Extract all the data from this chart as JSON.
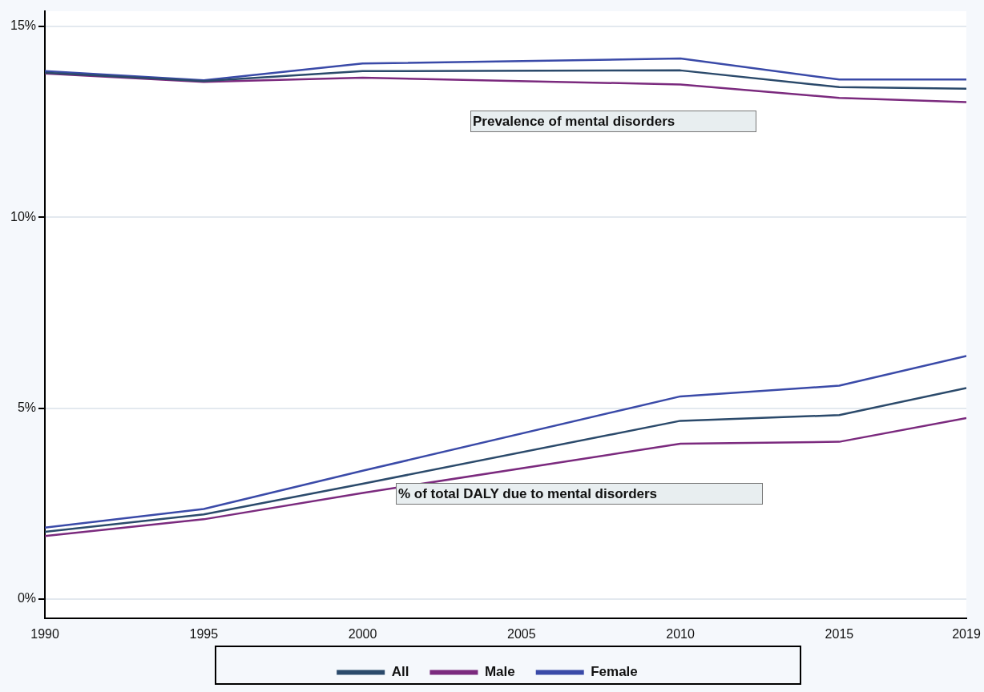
{
  "chart_data": {
    "type": "line",
    "x": [
      1990,
      1995,
      2000,
      2010,
      2015,
      2019
    ],
    "xlim": [
      1990,
      2019
    ],
    "xticks": [
      1990,
      1995,
      2000,
      2005,
      2010,
      2015,
      2019
    ],
    "ylim": [
      -0.5,
      15.4
    ],
    "yticks": [
      {
        "value": 0,
        "label": "0%"
      },
      {
        "value": 5,
        "label": "5%"
      },
      {
        "value": 10,
        "label": "10%"
      },
      {
        "value": 15,
        "label": "15%"
      }
    ],
    "grid": "y",
    "legend": "bottom",
    "line_style": "solid",
    "marker": "none",
    "series": [
      {
        "name": "All",
        "color": "#2b4a6b",
        "values": [
          13.79,
          13.57,
          13.83,
          13.85,
          13.41,
          13.37
        ]
      },
      {
        "name": "Male",
        "color": "#7b2a7e",
        "values": [
          13.77,
          13.55,
          13.66,
          13.48,
          13.13,
          13.02
        ]
      },
      {
        "name": "Female",
        "color": "#3a4aa8",
        "values": [
          13.83,
          13.59,
          14.03,
          14.16,
          13.61,
          13.61
        ]
      },
      {
        "color": "#2b4a6b",
        "values": [
          1.76,
          2.22,
          3.02,
          4.67,
          4.82,
          5.53
        ]
      },
      {
        "color": "#7b2a7e",
        "values": [
          1.65,
          2.09,
          2.78,
          4.07,
          4.12,
          4.74
        ]
      },
      {
        "color": "#3a4aa8",
        "values": [
          1.87,
          2.36,
          3.36,
          5.31,
          5.59,
          6.37
        ]
      }
    ],
    "annotations": [
      "Prevalence of mental disorders",
      "% of total DALY due to mental disorders"
    ]
  }
}
